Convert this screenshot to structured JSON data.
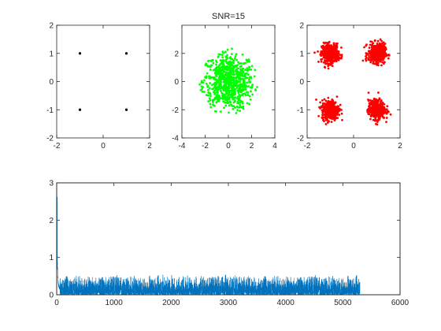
{
  "figure": {
    "background": "#ffffff",
    "axis_color": "#262626"
  },
  "chart_data": [
    {
      "type": "scatter",
      "title": "",
      "xlim": [
        -2,
        2
      ],
      "ylim": [
        -2,
        2
      ],
      "xticks": [
        -2,
        0,
        2
      ],
      "yticks": [
        -2,
        -1,
        0,
        1,
        2
      ],
      "xtick_labels": [
        "-2",
        "0",
        "2"
      ],
      "ytick_labels": [
        "-2",
        "-1",
        "0",
        "1",
        "2"
      ],
      "grid": false,
      "color": "#000000",
      "marker_size": 1.6,
      "points": [
        [
          -1,
          1
        ],
        [
          1,
          1
        ],
        [
          -1,
          -1
        ],
        [
          1,
          -1
        ]
      ]
    },
    {
      "type": "scatter",
      "title": "SNR=15",
      "xlim": [
        -4,
        4
      ],
      "ylim": [
        -4,
        4
      ],
      "xticks": [
        -4,
        -2,
        0,
        2,
        4
      ],
      "yticks": [
        -4,
        -2,
        0,
        2
      ],
      "xtick_labels": [
        "-4",
        "-2",
        "0",
        "2",
        "4"
      ],
      "ytick_labels": [
        "-4",
        "-2",
        "0",
        "2"
      ],
      "grid": false,
      "color": "#00ff00",
      "marker_size": 1.4,
      "cloud": {
        "center": [
          0,
          0
        ],
        "spread": [
          1.1,
          1.0
        ],
        "count": 750,
        "radius_limit": 2.4
      }
    },
    {
      "type": "scatter",
      "title": "",
      "xlim": [
        -2,
        2
      ],
      "ylim": [
        -2,
        2
      ],
      "xticks": [
        -2,
        0,
        2
      ],
      "yticks": [
        -2,
        -1,
        0,
        1,
        2
      ],
      "xtick_labels": [
        "-2",
        "0",
        "2"
      ],
      "ytick_labels": [
        "-2",
        "-1",
        "0",
        "1",
        "2"
      ],
      "grid": false,
      "color": "#ff0000",
      "marker_size": 1.4,
      "clusters": [
        {
          "center": [
            -1,
            1
          ],
          "spread": [
            0.18,
            0.17
          ],
          "count": 420
        },
        {
          "center": [
            1,
            1
          ],
          "spread": [
            0.18,
            0.17
          ],
          "count": 420
        },
        {
          "center": [
            -1,
            -1
          ],
          "spread": [
            0.18,
            0.17
          ],
          "count": 420
        },
        {
          "center": [
            1,
            -1
          ],
          "spread": [
            0.18,
            0.17
          ],
          "count": 420
        }
      ]
    },
    {
      "type": "line",
      "title": "",
      "xlim": [
        0,
        6000
      ],
      "ylim": [
        0,
        3
      ],
      "xticks": [
        0,
        1000,
        2000,
        3000,
        4000,
        5000,
        6000
      ],
      "yticks": [
        0,
        1,
        2,
        3
      ],
      "xtick_labels": [
        "0",
        "1000",
        "2000",
        "3000",
        "4000",
        "5000",
        "6000"
      ],
      "ytick_labels": [
        "0",
        "1",
        "2",
        "3"
      ],
      "grid": false,
      "color": "#0072bd",
      "series": {
        "length": 5300,
        "initial_peak": 2.62,
        "decay_to": 0.2,
        "decay_length": 60,
        "noise_max": 0.5
      }
    }
  ]
}
